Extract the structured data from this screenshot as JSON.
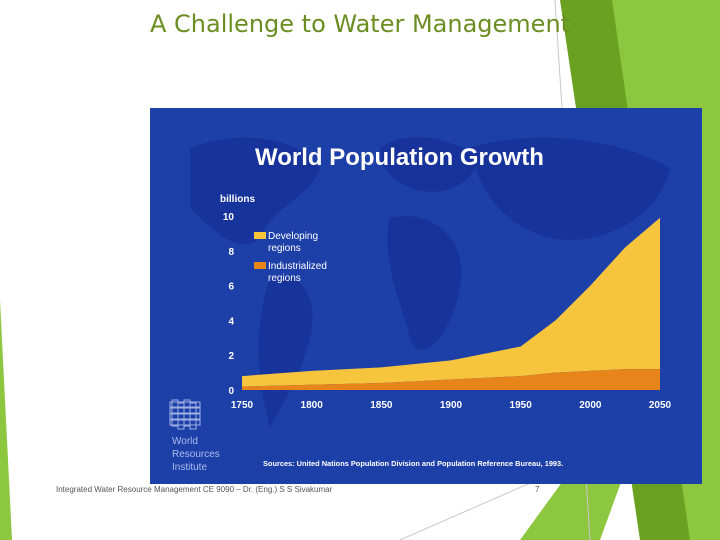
{
  "slide": {
    "title": "A Challenge to Water Management",
    "footer": "Integrated Water Resource Management CE 9090 – Dr. (Eng.) S S Sivakumar",
    "page_number": "7"
  },
  "figure": {
    "logo_line1": "World",
    "logo_line2": "Resources",
    "logo_line3": "Institute",
    "source_note": "Sources: United Nations Population Division and Population Reference Bureau, 1993."
  },
  "colors": {
    "background": "#1c3fa8",
    "developing": "#f7c43e",
    "industrialized": "#e8851a",
    "accent_green": "#8dc63f",
    "title_green": "#6b8e23"
  },
  "chart_data": {
    "type": "area",
    "title": "World Population Growth",
    "ylabel": "billions",
    "x": [
      1750,
      1800,
      1850,
      1900,
      1950,
      1975,
      2000,
      2025,
      2050
    ],
    "ylim": [
      0,
      10
    ],
    "yticks": [
      0,
      2,
      4,
      6,
      8,
      10
    ],
    "xticks": [
      1750,
      1800,
      1850,
      1900,
      1950,
      2000,
      2050
    ],
    "stacked": true,
    "series": [
      {
        "name": "Industrialized regions",
        "values": [
          0.2,
          0.3,
          0.4,
          0.6,
          0.8,
          1.0,
          1.1,
          1.2,
          1.2
        ]
      },
      {
        "name": "Developing regions",
        "values": [
          0.6,
          0.8,
          0.9,
          1.1,
          1.7,
          3.0,
          4.9,
          7.0,
          8.7
        ]
      }
    ],
    "legend": [
      "Developing regions",
      "Industrialized regions"
    ],
    "legend_position": "top-left"
  }
}
